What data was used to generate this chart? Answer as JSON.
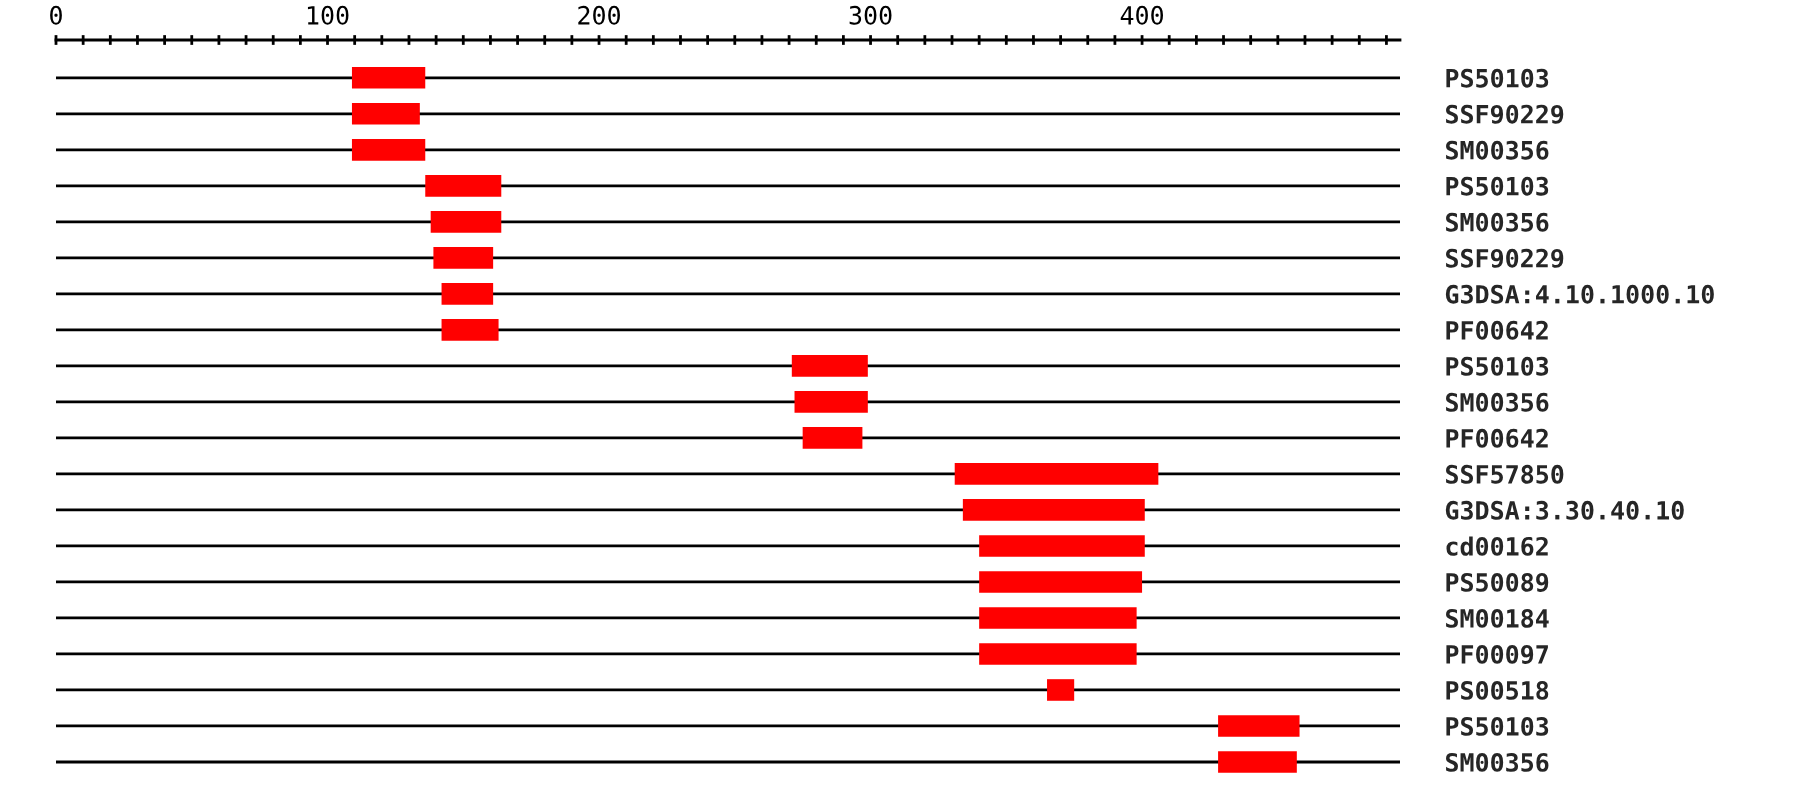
{
  "chart_data": {
    "type": "bar",
    "orientation": "horizontal",
    "categories": [
      "PS50103",
      "SSF90229",
      "SM00356",
      "PS50103",
      "SM00356",
      "SSF90229",
      "G3DSA:4.10.1000.10",
      "PF00642",
      "PS50103",
      "SM00356",
      "PF00642",
      "SSF57850",
      "G3DSA:3.30.40.10",
      "cd00162",
      "PS50089",
      "SM00184",
      "PF00097",
      "PS00518",
      "PS50103",
      "SM00356"
    ],
    "base": [
      109,
      109,
      109,
      136,
      138,
      139,
      142,
      142,
      271,
      272,
      275,
      331,
      334,
      340,
      340,
      340,
      340,
      365,
      428,
      428
    ],
    "values": [
      27,
      25,
      27,
      28,
      26,
      22,
      19,
      21,
      28,
      27,
      22,
      75,
      67,
      61,
      60,
      58,
      58,
      10,
      30,
      29
    ],
    "color": "#ff0000",
    "xlim": [
      0,
      495
    ],
    "xticks": [
      0,
      {
        "value": 10,
        "label": null
      },
      {
        "value": 20,
        "label": null
      },
      {
        "value": 30,
        "label": null
      },
      {
        "value": 40,
        "label": null
      },
      {
        "value": 50,
        "label": null
      },
      {
        "value": 60,
        "label": null
      },
      {
        "value": 70,
        "label": null
      },
      {
        "value": 80,
        "label": null
      },
      {
        "value": 90,
        "label": null
      },
      100,
      {
        "value": 110,
        "label": null
      },
      {
        "value": 120,
        "label": null
      },
      {
        "value": 130,
        "label": null
      },
      {
        "value": 140,
        "label": null
      },
      {
        "value": 150,
        "label": null
      },
      {
        "value": 160,
        "label": null
      },
      {
        "value": 170,
        "label": null
      },
      {
        "value": 180,
        "label": null
      },
      {
        "value": 190,
        "label": null
      },
      200,
      {
        "value": 210,
        "label": null
      },
      {
        "value": 220,
        "label": null
      },
      {
        "value": 230,
        "label": null
      },
      {
        "value": 240,
        "label": null
      },
      {
        "value": 250,
        "label": null
      },
      {
        "value": 260,
        "label": null
      },
      {
        "value": 270,
        "label": null
      },
      {
        "value": 280,
        "label": null
      },
      {
        "value": 290,
        "label": null
      },
      300,
      {
        "value": 310,
        "label": null
      },
      {
        "value": 320,
        "label": null
      },
      {
        "value": 330,
        "label": null
      },
      {
        "value": 340,
        "label": null
      },
      {
        "value": 350,
        "label": null
      },
      {
        "value": 360,
        "label": null
      },
      {
        "value": 370,
        "label": null
      },
      {
        "value": 380,
        "label": null
      },
      {
        "value": 390,
        "label": null
      },
      400,
      {
        "value": 410,
        "label": null
      },
      {
        "value": 420,
        "label": null
      },
      {
        "value": 430,
        "label": null
      },
      {
        "value": 440,
        "label": null
      },
      {
        "value": 450,
        "label": null
      },
      {
        "value": 460,
        "label": null
      },
      {
        "value": 470,
        "label": null
      },
      {
        "value": 480,
        "label": null
      },
      {
        "value": 490,
        "label": null
      }
    ],
    "grid": "y"
  }
}
